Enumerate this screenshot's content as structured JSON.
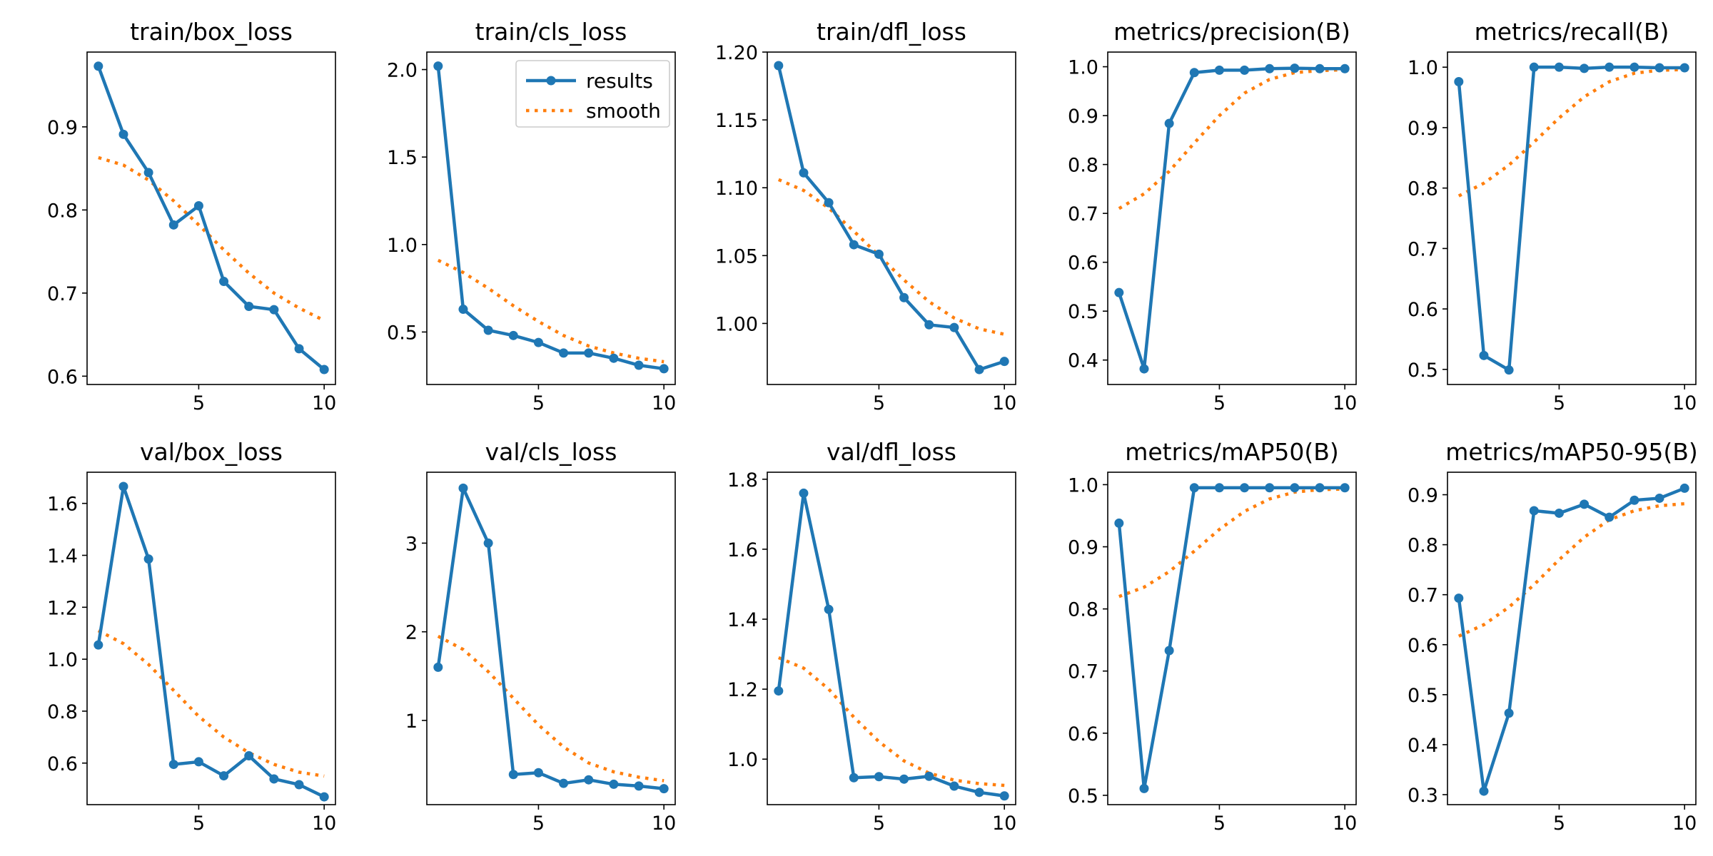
{
  "colors": {
    "results": "#1f77b4",
    "smooth": "#ff7f0e",
    "axis": "#000000"
  },
  "legend": {
    "placement": "upper-right",
    "results_label": "results",
    "smooth_label": "smooth",
    "panel": 1
  },
  "chart_data": [
    {
      "type": "line",
      "title": "train/box_loss",
      "ylim": [
        0.59,
        0.99
      ],
      "yticks": [
        0.6,
        0.7,
        0.8,
        0.9
      ],
      "ytick_labels": [
        "0.6",
        "0.7",
        "0.8",
        "0.9"
      ],
      "x": [
        1,
        2,
        3,
        4,
        5,
        6,
        7,
        8,
        9,
        10
      ],
      "xlim": [
        0.55,
        10.45
      ],
      "xticks": [
        5,
        10
      ],
      "xtick_labels": [
        "5",
        "10"
      ],
      "series": [
        {
          "name": "results",
          "values": [
            0.973,
            0.891,
            0.845,
            0.782,
            0.805,
            0.714,
            0.684,
            0.68,
            0.633,
            0.608
          ]
        },
        {
          "name": "smooth",
          "values": [
            0.863,
            0.854,
            0.836,
            0.811,
            0.782,
            0.752,
            0.724,
            0.7,
            0.682,
            0.667
          ]
        }
      ]
    },
    {
      "type": "line",
      "title": "train/cls_loss",
      "ylim": [
        0.2,
        2.1
      ],
      "yticks": [
        0.5,
        1.0,
        1.5,
        2.0
      ],
      "ytick_labels": [
        "0.5",
        "1.0",
        "1.5",
        "2.0"
      ],
      "x": [
        1,
        2,
        3,
        4,
        5,
        6,
        7,
        8,
        9,
        10
      ],
      "xlim": [
        0.55,
        10.45
      ],
      "xticks": [
        5,
        10
      ],
      "xtick_labels": [
        "5",
        "10"
      ],
      "series": [
        {
          "name": "results",
          "values": [
            2.02,
            0.63,
            0.51,
            0.48,
            0.44,
            0.38,
            0.38,
            0.35,
            0.31,
            0.29
          ]
        },
        {
          "name": "smooth",
          "values": [
            0.91,
            0.84,
            0.75,
            0.65,
            0.56,
            0.48,
            0.42,
            0.38,
            0.35,
            0.33
          ]
        }
      ]
    },
    {
      "type": "line",
      "title": "train/dfl_loss",
      "ylim": [
        0.955,
        1.2
      ],
      "yticks": [
        1.0,
        1.05,
        1.1,
        1.15,
        1.2
      ],
      "ytick_labels": [
        "1.00",
        "1.05",
        "1.10",
        "1.15",
        "1.20"
      ],
      "x": [
        1,
        2,
        3,
        4,
        5,
        6,
        7,
        8,
        9,
        10
      ],
      "xlim": [
        0.55,
        10.45
      ],
      "xticks": [
        5,
        10
      ],
      "xtick_labels": [
        "5",
        "10"
      ],
      "series": [
        {
          "name": "results",
          "values": [
            1.19,
            1.111,
            1.089,
            1.058,
            1.051,
            1.019,
            0.999,
            0.997,
            0.966,
            0.972
          ]
        },
        {
          "name": "smooth",
          "values": [
            1.106,
            1.098,
            1.085,
            1.068,
            1.05,
            1.032,
            1.016,
            1.004,
            0.996,
            0.992
          ]
        }
      ]
    },
    {
      "type": "line",
      "title": "metrics/precision(B)",
      "ylim": [
        0.35,
        1.03
      ],
      "yticks": [
        0.4,
        0.5,
        0.6,
        0.7,
        0.8,
        0.9,
        1.0
      ],
      "ytick_labels": [
        "0.4",
        "0.5",
        "0.6",
        "0.7",
        "0.8",
        "0.9",
        "1.0"
      ],
      "x": [
        1,
        2,
        3,
        4,
        5,
        6,
        7,
        8,
        9,
        10
      ],
      "xlim": [
        0.55,
        10.45
      ],
      "xticks": [
        5,
        10
      ],
      "xtick_labels": [
        "5",
        "10"
      ],
      "series": [
        {
          "name": "results",
          "values": [
            0.538,
            0.382,
            0.884,
            0.988,
            0.993,
            0.993,
            0.996,
            0.997,
            0.996,
            0.996
          ]
        },
        {
          "name": "smooth",
          "values": [
            0.71,
            0.74,
            0.786,
            0.844,
            0.9,
            0.946,
            0.974,
            0.988,
            0.992,
            0.994
          ]
        }
      ]
    },
    {
      "type": "line",
      "title": "metrics/recall(B)",
      "ylim": [
        0.475,
        1.025
      ],
      "yticks": [
        0.5,
        0.6,
        0.7,
        0.8,
        0.9,
        1.0
      ],
      "ytick_labels": [
        "0.5",
        "0.6",
        "0.7",
        "0.8",
        "0.9",
        "1.0"
      ],
      "x": [
        1,
        2,
        3,
        4,
        5,
        6,
        7,
        8,
        9,
        10
      ],
      "xlim": [
        0.55,
        10.45
      ],
      "xticks": [
        5,
        10
      ],
      "xtick_labels": [
        "5",
        "10"
      ],
      "series": [
        {
          "name": "results",
          "values": [
            0.976,
            0.523,
            0.499,
            1.0,
            1.0,
            0.998,
            1.0,
            1.0,
            0.999,
            0.999
          ]
        },
        {
          "name": "smooth",
          "values": [
            0.787,
            0.808,
            0.838,
            0.876,
            0.916,
            0.951,
            0.976,
            0.99,
            0.995,
            0.996
          ]
        }
      ]
    },
    {
      "type": "line",
      "title": "val/box_loss",
      "ylim": [
        0.44,
        1.72
      ],
      "yticks": [
        0.6,
        0.8,
        1.0,
        1.2,
        1.4,
        1.6
      ],
      "ytick_labels": [
        "0.6",
        "0.8",
        "1.0",
        "1.2",
        "1.4",
        "1.6"
      ],
      "x": [
        1,
        2,
        3,
        4,
        5,
        6,
        7,
        8,
        9,
        10
      ],
      "xlim": [
        0.55,
        10.45
      ],
      "xticks": [
        5,
        10
      ],
      "xtick_labels": [
        "5",
        "10"
      ],
      "series": [
        {
          "name": "results",
          "values": [
            1.055,
            1.665,
            1.386,
            0.595,
            0.605,
            0.551,
            0.628,
            0.539,
            0.517,
            0.47
          ]
        },
        {
          "name": "smooth",
          "values": [
            1.11,
            1.06,
            0.98,
            0.88,
            0.78,
            0.7,
            0.64,
            0.595,
            0.565,
            0.55
          ]
        }
      ]
    },
    {
      "type": "line",
      "title": "val/cls_loss",
      "ylim": [
        0.05,
        3.8
      ],
      "yticks": [
        1,
        2,
        3
      ],
      "ytick_labels": [
        "1",
        "2",
        "3"
      ],
      "x": [
        1,
        2,
        3,
        4,
        5,
        6,
        7,
        8,
        9,
        10
      ],
      "xlim": [
        0.55,
        10.45
      ],
      "xticks": [
        5,
        10
      ],
      "xtick_labels": [
        "5",
        "10"
      ],
      "series": [
        {
          "name": "results",
          "values": [
            1.6,
            3.62,
            3.0,
            0.39,
            0.41,
            0.29,
            0.33,
            0.28,
            0.26,
            0.23
          ]
        },
        {
          "name": "smooth",
          "values": [
            1.95,
            1.8,
            1.55,
            1.25,
            0.95,
            0.7,
            0.52,
            0.42,
            0.36,
            0.32
          ]
        }
      ]
    },
    {
      "type": "line",
      "title": "val/dfl_loss",
      "ylim": [
        0.87,
        1.82
      ],
      "yticks": [
        1.0,
        1.2,
        1.4,
        1.6,
        1.8
      ],
      "ytick_labels": [
        "1.0",
        "1.2",
        "1.4",
        "1.6",
        "1.8"
      ],
      "x": [
        1,
        2,
        3,
        4,
        5,
        6,
        7,
        8,
        9,
        10
      ],
      "xlim": [
        0.55,
        10.45
      ],
      "xticks": [
        5,
        10
      ],
      "xtick_labels": [
        "5",
        "10"
      ],
      "series": [
        {
          "name": "results",
          "values": [
            1.195,
            1.76,
            1.428,
            0.947,
            0.95,
            0.943,
            0.951,
            0.923,
            0.905,
            0.895
          ]
        },
        {
          "name": "smooth",
          "values": [
            1.29,
            1.26,
            1.2,
            1.12,
            1.05,
            0.995,
            0.96,
            0.94,
            0.93,
            0.925
          ]
        }
      ]
    },
    {
      "type": "line",
      "title": "metrics/mAP50(B)",
      "ylim": [
        0.485,
        1.02
      ],
      "yticks": [
        0.5,
        0.6,
        0.7,
        0.8,
        0.9,
        1.0
      ],
      "ytick_labels": [
        "0.5",
        "0.6",
        "0.7",
        "0.8",
        "0.9",
        "1.0"
      ],
      "x": [
        1,
        2,
        3,
        4,
        5,
        6,
        7,
        8,
        9,
        10
      ],
      "xlim": [
        0.55,
        10.45
      ],
      "xticks": [
        5,
        10
      ],
      "xtick_labels": [
        "5",
        "10"
      ],
      "series": [
        {
          "name": "results",
          "values": [
            0.938,
            0.511,
            0.733,
            0.995,
            0.995,
            0.995,
            0.995,
            0.995,
            0.995,
            0.995
          ]
        },
        {
          "name": "smooth",
          "values": [
            0.82,
            0.835,
            0.86,
            0.893,
            0.928,
            0.957,
            0.977,
            0.988,
            0.992,
            0.993
          ]
        }
      ]
    },
    {
      "type": "line",
      "title": "metrics/mAP50-95(B)",
      "ylim": [
        0.28,
        0.945
      ],
      "yticks": [
        0.3,
        0.4,
        0.5,
        0.6,
        0.7,
        0.8,
        0.9
      ],
      "ytick_labels": [
        "0.3",
        "0.4",
        "0.5",
        "0.6",
        "0.7",
        "0.8",
        "0.9"
      ],
      "x": [
        1,
        2,
        3,
        4,
        5,
        6,
        7,
        8,
        9,
        10
      ],
      "xlim": [
        0.55,
        10.45
      ],
      "xticks": [
        5,
        10
      ],
      "xtick_labels": [
        "5",
        "10"
      ],
      "series": [
        {
          "name": "results",
          "values": [
            0.693,
            0.307,
            0.463,
            0.868,
            0.863,
            0.881,
            0.855,
            0.889,
            0.893,
            0.913
          ]
        },
        {
          "name": "smooth",
          "values": [
            0.617,
            0.64,
            0.675,
            0.72,
            0.77,
            0.815,
            0.85,
            0.868,
            0.878,
            0.882
          ]
        }
      ]
    }
  ]
}
